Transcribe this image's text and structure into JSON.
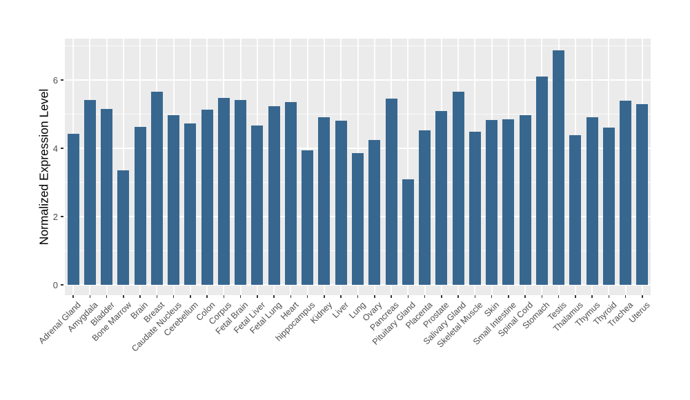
{
  "chart_data": {
    "type": "bar",
    "title": "",
    "xlabel": "",
    "ylabel": "Normalized Expression Level",
    "categories": [
      "Adrenal Gland",
      "Amygdala",
      "Bladder",
      "Bone Marrow",
      "Brain",
      "Breast",
      "Caudate Nucleus",
      "Cerebellum",
      "Colon",
      "Corpus",
      "Fetal Brain",
      "Fetal Liver",
      "Fetal Lung",
      "Heart",
      "hippocampus",
      "Kidney",
      "Liver",
      "Lung",
      "Ovary",
      "Pancreas",
      "Pituitary Gland",
      "Placenta",
      "Prostate",
      "Salivary Gland",
      "Skeletal Muscle",
      "Skin",
      "Small Intestine",
      "Spinal Cord",
      "Stomach",
      "Testis",
      "Thalamus",
      "Thymus",
      "Thyroid",
      "Trachea",
      "Uterus"
    ],
    "values": [
      4.42,
      5.42,
      5.16,
      3.36,
      4.62,
      5.66,
      4.98,
      4.72,
      5.14,
      5.47,
      5.41,
      4.67,
      5.24,
      5.35,
      3.94,
      4.9,
      4.8,
      3.86,
      4.24,
      5.46,
      3.1,
      4.53,
      5.09,
      5.65,
      4.48,
      4.83,
      4.85,
      4.96,
      6.11,
      6.86,
      4.38,
      4.91,
      4.61,
      5.4,
      5.29
    ],
    "yticks": [
      0,
      2,
      4,
      6
    ],
    "minor_gridlines": [
      1,
      3,
      5,
      7
    ],
    "ylim": [
      0,
      7.2
    ],
    "grid": true,
    "legend": false,
    "colors": {
      "bar": "#37678F",
      "panel_bg": "#EBEBEB",
      "grid": "#FFFFFF",
      "axis_text": "#4D4D4D",
      "axis_title": "#000000",
      "tick_mark": "#333333",
      "background": "#FFFFFF"
    }
  }
}
